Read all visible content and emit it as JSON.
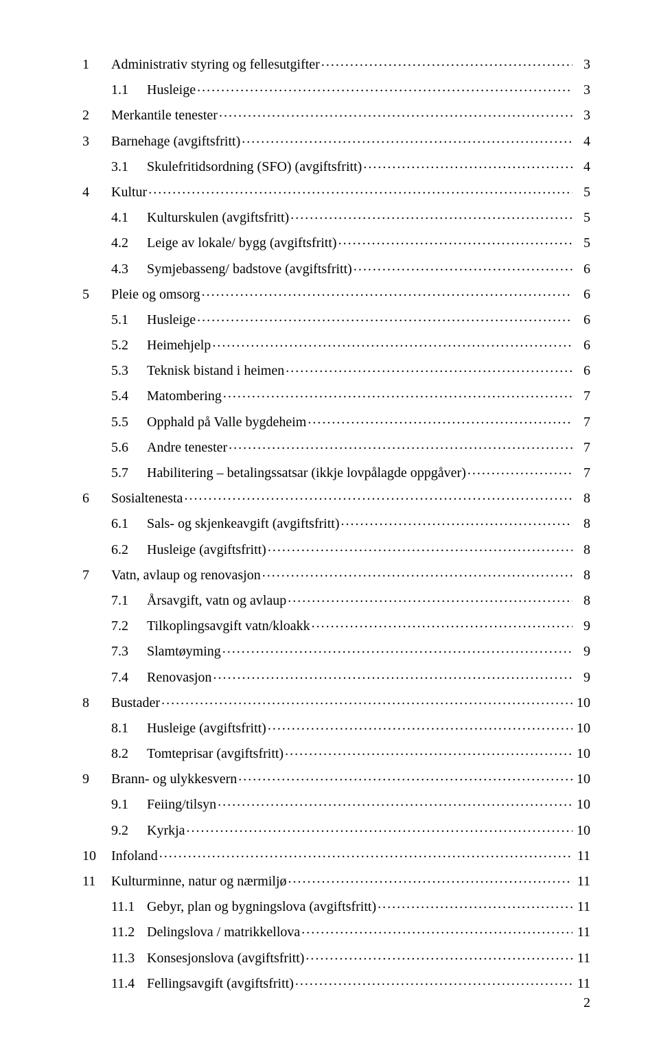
{
  "page_number": "2",
  "toc": [
    {
      "level": 1,
      "num": "1",
      "title": "Administrativ styring og fellesutgifter",
      "page": "3"
    },
    {
      "level": 2,
      "num": "1.1",
      "title": "Husleige",
      "page": "3"
    },
    {
      "level": 1,
      "num": "2",
      "title": "Merkantile tenester",
      "page": "3"
    },
    {
      "level": 1,
      "num": "3",
      "title": "Barnehage  (avgiftsfritt)",
      "page": "4"
    },
    {
      "level": 2,
      "num": "3.1",
      "title": "Skulefritidsordning (SFO) (avgiftsfritt)",
      "page": "4"
    },
    {
      "level": 1,
      "num": "4",
      "title": "Kultur",
      "page": "5"
    },
    {
      "level": 2,
      "num": "4.1",
      "title": "Kulturskulen (avgiftsfritt)",
      "page": "5"
    },
    {
      "level": 2,
      "num": "4.2",
      "title": "Leige av lokale/ bygg (avgiftsfritt)",
      "page": "5"
    },
    {
      "level": 2,
      "num": "4.3",
      "title": "Symjebasseng/ badstove (avgiftsfritt)",
      "page": "6"
    },
    {
      "level": 1,
      "num": "5",
      "title": "Pleie og omsorg",
      "page": "6"
    },
    {
      "level": 2,
      "num": "5.1",
      "title": "Husleige",
      "page": "6"
    },
    {
      "level": 2,
      "num": "5.2",
      "title": "Heimehjelp",
      "page": "6"
    },
    {
      "level": 2,
      "num": "5.3",
      "title": "Teknisk bistand i heimen",
      "page": "6"
    },
    {
      "level": 2,
      "num": "5.4",
      "title": "Matombering",
      "page": "7"
    },
    {
      "level": 2,
      "num": "5.5",
      "title": "Opphald på Valle bygdeheim",
      "page": "7"
    },
    {
      "level": 2,
      "num": "5.6",
      "title": "Andre tenester",
      "page": "7"
    },
    {
      "level": 2,
      "num": "5.7",
      "title": "Habilitering – betalingssatsar (ikkje lovpålagde oppgåver)",
      "page": "7"
    },
    {
      "level": 1,
      "num": "6",
      "title": "Sosialtenesta",
      "page": "8"
    },
    {
      "level": 2,
      "num": "6.1",
      "title": "Sals- og skjenkeavgift (avgiftsfritt)",
      "page": "8"
    },
    {
      "level": 2,
      "num": "6.2",
      "title": "Husleige (avgiftsfritt)",
      "page": "8"
    },
    {
      "level": 1,
      "num": "7",
      "title": "Vatn, avlaup og renovasjon",
      "page": "8"
    },
    {
      "level": 2,
      "num": "7.1",
      "title": "Årsavgift, vatn og avlaup",
      "page": "8"
    },
    {
      "level": 2,
      "num": "7.2",
      "title": "Tilkoplingsavgift vatn/kloakk",
      "page": "9"
    },
    {
      "level": 2,
      "num": "7.3",
      "title": "Slamtøyming",
      "page": "9"
    },
    {
      "level": 2,
      "num": "7.4",
      "title": "Renovasjon",
      "page": "9"
    },
    {
      "level": 1,
      "num": "8",
      "title": "Bustader",
      "page": "10"
    },
    {
      "level": 2,
      "num": "8.1",
      "title": "Husleige (avgiftsfritt)",
      "page": "10"
    },
    {
      "level": 2,
      "num": "8.2",
      "title": "Tomteprisar (avgiftsfritt)",
      "page": "10"
    },
    {
      "level": 1,
      "num": "9",
      "title": "Brann- og ulykkesvern",
      "page": "10"
    },
    {
      "level": 2,
      "num": "9.1",
      "title": "Feiing/tilsyn",
      "page": "10"
    },
    {
      "level": 2,
      "num": "9.2",
      "title": "Kyrkja",
      "page": "10"
    },
    {
      "level": 1,
      "num": "10",
      "title": "Infoland",
      "page": "11"
    },
    {
      "level": 1,
      "num": "11",
      "title": "Kulturminne, natur og nærmiljø",
      "page": "11"
    },
    {
      "level": 2,
      "num": "11.1",
      "title": "Gebyr, plan og bygningslova (avgiftsfritt)",
      "page": "11"
    },
    {
      "level": 2,
      "num": "11.2",
      "title": "Delingslova / matrikkellova",
      "page": "11"
    },
    {
      "level": 2,
      "num": "11.3",
      "title": "Konsesjonslova (avgiftsfritt)",
      "page": "11"
    },
    {
      "level": 2,
      "num": "11.4",
      "title": "Fellingsavgift (avgiftsfritt)",
      "page": "11"
    }
  ]
}
